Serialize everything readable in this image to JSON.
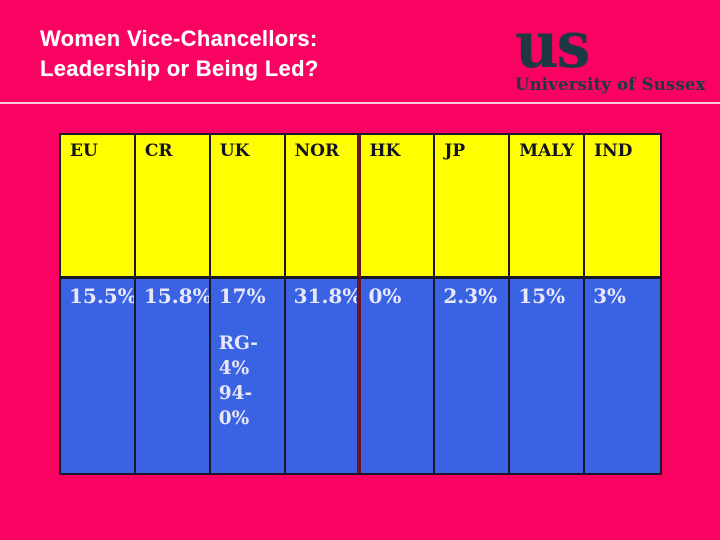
{
  "slide": {
    "title_line1": "Women Vice-Chancellors:",
    "title_line2": "Leadership or Being Led?"
  },
  "logo": {
    "mark": "US",
    "caption": "University of Sussex"
  },
  "table": {
    "columns": [
      {
        "code": "EU",
        "value": "15.5%"
      },
      {
        "code": "CR",
        "value": "15.8%"
      },
      {
        "code": "UK",
        "value": "17%",
        "extra": [
          "RG- 4%",
          "94- 0%"
        ]
      },
      {
        "code": "NOR",
        "value": "31.8%"
      },
      {
        "code": "HK",
        "value": "0%"
      },
      {
        "code": "JP",
        "value": "2.3%"
      },
      {
        "code": "MALY",
        "value": "15%"
      },
      {
        "code": "IND",
        "value": "3%"
      }
    ]
  },
  "colors": {
    "background_pink": "#FA0262",
    "header_yellow": "#FFFF00",
    "value_blue": "#3A63E4",
    "table_border": "#191929",
    "red_divider": "#6E1222",
    "logo_dark_teal": "#1D3944",
    "title_text": "#FFFFFF",
    "value_text": "#EAE8F8",
    "header_text": "#131320"
  },
  "chart_data": {
    "type": "table",
    "title": "Women Vice-Chancellors: Leadership or Being Led?",
    "categories": [
      "EU",
      "CR",
      "UK",
      "NOR",
      "HK",
      "JP",
      "MALY",
      "IND"
    ],
    "values_percent": [
      15.5,
      15.8,
      17,
      31.8,
      0,
      2.3,
      15,
      3
    ],
    "notes": {
      "UK": "RG- 4%; 94- 0%"
    },
    "legend_position": "none",
    "grid": false
  }
}
